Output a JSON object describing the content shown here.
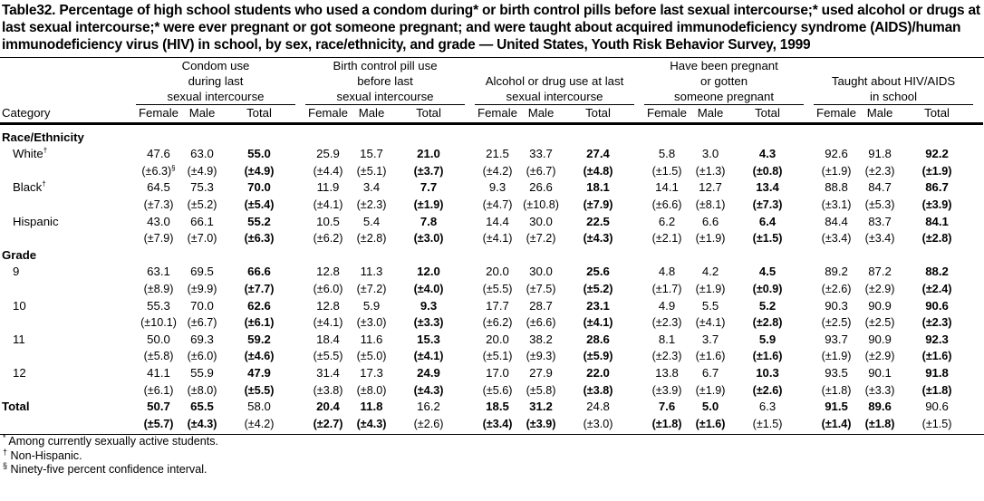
{
  "title": "Table32. Percentage of high school students who used a condom during* or birth control pills before last sexual intercourse;* used alcohol or drugs at last sexual intercourse;* were ever pregnant or got someone pregnant; and were taught about acquired immunodeficiency syndrome (AIDS)/human immunodeficiency virus (HIV) in school, by sex, race/ethnicity, and grade — United States, Youth Risk Behavior Survey, 1999",
  "header": {
    "category": "Category",
    "groups": [
      [
        "Condom use",
        "during last",
        "sexual intercourse"
      ],
      [
        "Birth control pill use",
        "before last",
        "sexual intercourse"
      ],
      [
        "Alcohol or drug use at last",
        "sexual intercourse"
      ],
      [
        "Have been pregnant",
        "or gotten",
        "someone pregnant"
      ],
      [
        "Taught about HIV/AIDS",
        "in school"
      ]
    ],
    "sub": [
      "Female",
      "Male",
      "Total"
    ]
  },
  "sections": [
    {
      "label": "Race/Ethnicity",
      "rows": [
        {
          "label": "White",
          "sup": "†",
          "values": [
            "47.6",
            "63.0",
            "55.0",
            "25.9",
            "15.7",
            "21.0",
            "21.5",
            "33.7",
            "27.4",
            "5.8",
            "3.0",
            "4.3",
            "92.6",
            "91.8",
            "92.2"
          ],
          "cis": [
            "(±6.3)",
            "(±4.9)",
            "(±4.9)",
            "(±4.4)",
            "(±5.1)",
            "(±3.7)",
            "(±4.2)",
            "(±6.7)",
            "(±4.8)",
            "(±1.5)",
            "(±1.3)",
            "(±0.8)",
            "(±1.9)",
            "(±2.3)",
            "(±1.9)"
          ],
          "ci_sup_first": "§"
        },
        {
          "label": "Black",
          "sup": "†",
          "values": [
            "64.5",
            "75.3",
            "70.0",
            "11.9",
            "3.4",
            "7.7",
            "9.3",
            "26.6",
            "18.1",
            "14.1",
            "12.7",
            "13.4",
            "88.8",
            "84.7",
            "86.7"
          ],
          "cis": [
            "(±7.3)",
            "(±5.2)",
            "(±5.4)",
            "(±4.1)",
            "(±2.3)",
            "(±1.9)",
            "(±4.7)",
            "(±10.8)",
            "(±7.9)",
            "(±6.6)",
            "(±8.1)",
            "(±7.3)",
            "(±3.1)",
            "(±5.3)",
            "(±3.9)"
          ]
        },
        {
          "label": "Hispanic",
          "values": [
            "43.0",
            "66.1",
            "55.2",
            "10.5",
            "5.4",
            "7.8",
            "14.4",
            "30.0",
            "22.5",
            "6.2",
            "6.6",
            "6.4",
            "84.4",
            "83.7",
            "84.1"
          ],
          "cis": [
            "(±7.9)",
            "(±7.0)",
            "(±6.3)",
            "(±6.2)",
            "(±2.8)",
            "(±3.0)",
            "(±4.1)",
            "(±7.2)",
            "(±4.3)",
            "(±2.1)",
            "(±1.9)",
            "(±1.5)",
            "(±3.4)",
            "(±3.4)",
            "(±2.8)"
          ]
        }
      ]
    },
    {
      "label": "Grade",
      "rows": [
        {
          "label": "9",
          "values": [
            "63.1",
            "69.5",
            "66.6",
            "12.8",
            "11.3",
            "12.0",
            "20.0",
            "30.0",
            "25.6",
            "4.8",
            "4.2",
            "4.5",
            "89.2",
            "87.2",
            "88.2"
          ],
          "cis": [
            "(±8.9)",
            "(±9.9)",
            "(±7.7)",
            "(±6.0)",
            "(±7.2)",
            "(±4.0)",
            "(±5.5)",
            "(±7.5)",
            "(±5.2)",
            "(±1.7)",
            "(±1.9)",
            "(±0.9)",
            "(±2.6)",
            "(±2.9)",
            "(±2.4)"
          ]
        },
        {
          "label": "10",
          "values": [
            "55.3",
            "70.0",
            "62.6",
            "12.8",
            "5.9",
            "9.3",
            "17.7",
            "28.7",
            "23.1",
            "4.9",
            "5.5",
            "5.2",
            "90.3",
            "90.9",
            "90.6"
          ],
          "cis": [
            "(±10.1)",
            "(±6.7)",
            "(±6.1)",
            "(±4.1)",
            "(±3.0)",
            "(±3.3)",
            "(±6.2)",
            "(±6.6)",
            "(±4.1)",
            "(±2.3)",
            "(±4.1)",
            "(±2.8)",
            "(±2.5)",
            "(±2.5)",
            "(±2.3)"
          ]
        },
        {
          "label": "11",
          "values": [
            "50.0",
            "69.3",
            "59.2",
            "18.4",
            "11.6",
            "15.3",
            "20.0",
            "38.2",
            "28.6",
            "8.1",
            "3.7",
            "5.9",
            "93.7",
            "90.9",
            "92.3"
          ],
          "cis": [
            "(±5.8)",
            "(±6.0)",
            "(±4.6)",
            "(±5.5)",
            "(±5.0)",
            "(±4.1)",
            "(±5.1)",
            "(±9.3)",
            "(±5.9)",
            "(±2.3)",
            "(±1.6)",
            "(±1.6)",
            "(±1.9)",
            "(±2.9)",
            "(±1.6)"
          ]
        },
        {
          "label": "12",
          "values": [
            "41.1",
            "55.9",
            "47.9",
            "31.4",
            "17.3",
            "24.9",
            "17.0",
            "27.9",
            "22.0",
            "13.8",
            "6.7",
            "10.3",
            "93.5",
            "90.1",
            "91.8"
          ],
          "cis": [
            "(±6.1)",
            "(±8.0)",
            "(±5.5)",
            "(±3.8)",
            "(±8.0)",
            "(±4.3)",
            "(±5.6)",
            "(±5.8)",
            "(±3.8)",
            "(±3.9)",
            "(±1.9)",
            "(±2.6)",
            "(±1.8)",
            "(±3.3)",
            "(±1.8)"
          ]
        }
      ]
    }
  ],
  "total": {
    "label": "Total",
    "values": [
      "50.7",
      "65.5",
      "58.0",
      "20.4",
      "11.8",
      "16.2",
      "18.5",
      "31.2",
      "24.8",
      "7.6",
      "5.0",
      "6.3",
      "91.5",
      "89.6",
      "90.6"
    ],
    "cis": [
      "(±5.7)",
      "(±4.3)",
      "(±4.2)",
      "(±2.7)",
      "(±4.3)",
      "(±2.6)",
      "(±3.4)",
      "(±3.9)",
      "(±3.0)",
      "(±1.8)",
      "(±1.6)",
      "(±1.5)",
      "(±1.4)",
      "(±1.8)",
      "(±1.5)"
    ]
  },
  "footnotes": [
    {
      "mark": "*",
      "text": " Among currently sexually active students."
    },
    {
      "mark": "†",
      "text": " Non-Hispanic."
    },
    {
      "mark": "§",
      "text": " Ninety-five percent confidence interval."
    }
  ]
}
